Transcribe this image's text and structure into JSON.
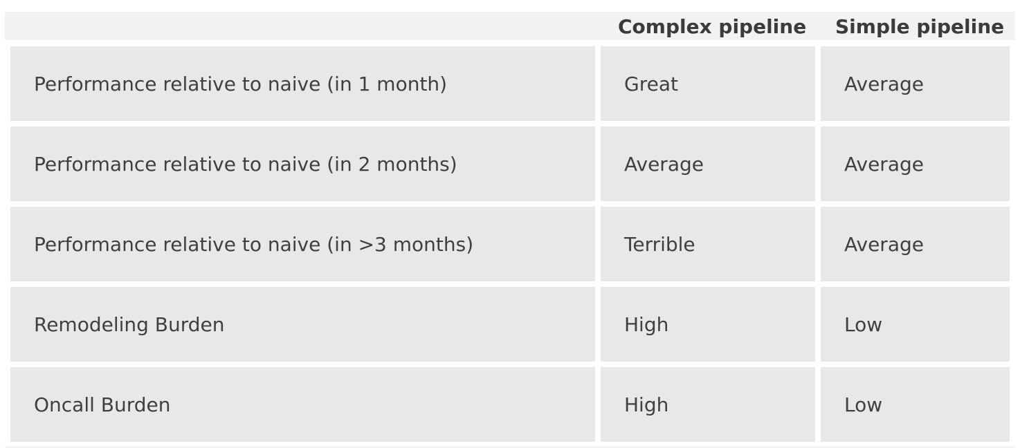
{
  "table": {
    "headers": [
      "",
      "Complex pipeline",
      "Simple pipeline"
    ],
    "rows": [
      [
        "Performance relative to naive (in 1 month)",
        "Great",
        "Average"
      ],
      [
        "Performance relative to naive (in 2 months)",
        "Average",
        "Average"
      ],
      [
        "Performance relative to naive (in >3 months)",
        "Terrible",
        "Average"
      ],
      [
        "Remodeling Burden",
        "High",
        "Low"
      ],
      [
        "Oncall Burden",
        "High",
        "Low"
      ]
    ]
  }
}
